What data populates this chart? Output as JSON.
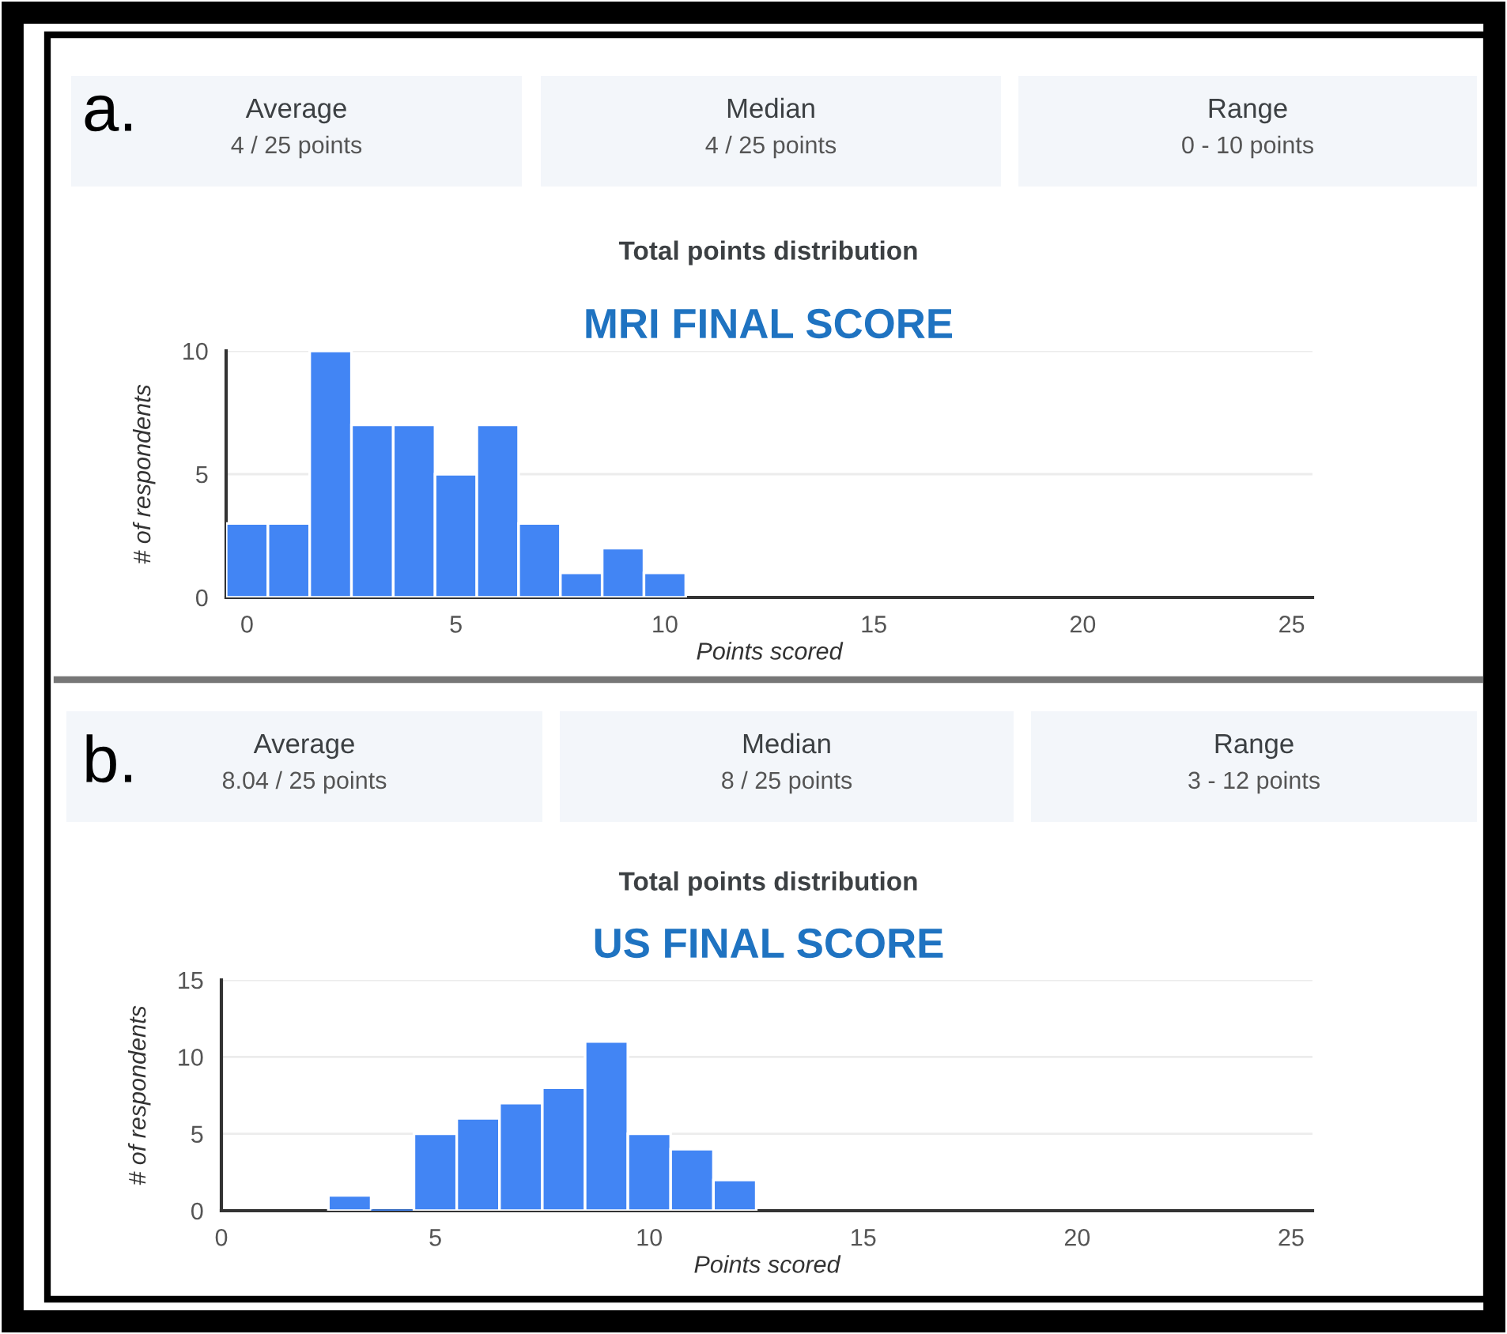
{
  "chart_data": [
    {
      "type": "histogram",
      "title": "Total points distribution",
      "subtitle": "MRI FINAL SCORE",
      "xlabel": "Points scored",
      "ylabel": "# of respondents",
      "annotations": [
        "a.",
        "Average",
        "4 / 25 points",
        "Median",
        "4 / 25 points",
        "Range",
        "0 - 10 points"
      ],
      "bins": [
        -0.5,
        0.5,
        1.5,
        2.5,
        3.5,
        4.5,
        5.5,
        6.5,
        7.5,
        8.5,
        9.5,
        10.5
      ],
      "values": [
        3,
        3,
        10,
        7,
        7,
        5,
        7,
        3,
        1,
        2,
        1
      ],
      "color": "#4285f4",
      "xlim": [
        -0.5,
        25.5
      ],
      "ylim": [
        0,
        10
      ],
      "xticks": [
        0,
        5,
        10,
        15,
        20,
        25
      ],
      "yticks": [
        0,
        5,
        10
      ],
      "grid": "y"
    },
    {
      "type": "histogram",
      "title": "Total points distribution",
      "subtitle": "US FINAL SCORE",
      "xlabel": "Points scored",
      "ylabel": "# of respondents",
      "annotations": [
        "b.",
        "Average",
        "8.04 / 25 points",
        "Median",
        "8 / 25 points",
        "Range",
        "3 - 12 points"
      ],
      "bins": [
        2.5,
        3.5,
        4.5,
        5.5,
        6.5,
        7.5,
        8.5,
        9.5,
        10.5,
        11.5,
        12.5
      ],
      "values": [
        1,
        0,
        5,
        6,
        7,
        8,
        11,
        5,
        4,
        2
      ],
      "color": "#4285f4",
      "xlim": [
        0,
        25.5
      ],
      "ylim": [
        0,
        15
      ],
      "xticks": [
        0,
        5,
        10,
        15,
        20,
        25
      ],
      "yticks": [
        0,
        5,
        10,
        15
      ],
      "grid": "y"
    }
  ]
}
